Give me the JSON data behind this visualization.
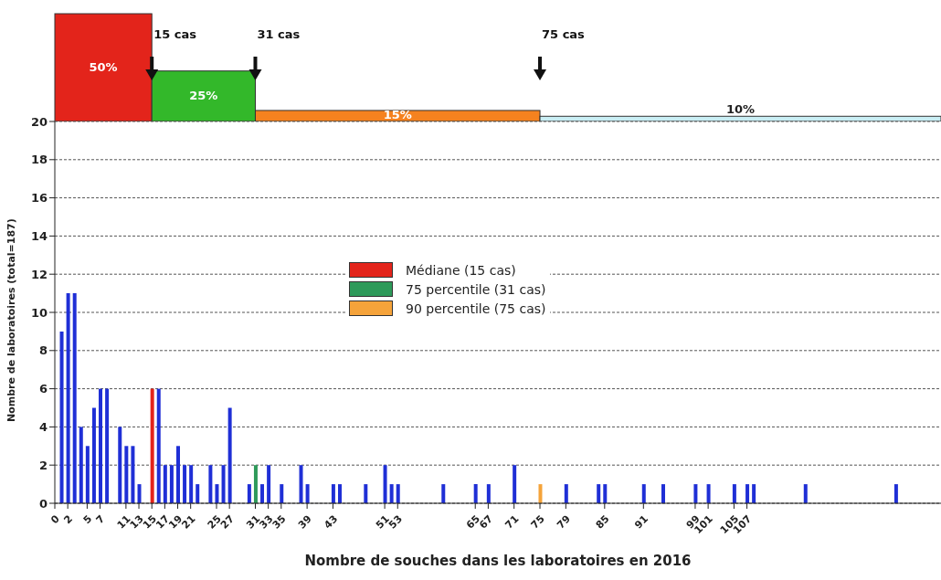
{
  "chart_data": [
    {
      "type": "other",
      "values": [
        50,
        25,
        15,
        10
      ],
      "colors": [
        "#e3241b",
        "#33b82a",
        "#f5821f",
        "#c9eef4"
      ],
      "value_labels": [
        "50%",
        "25%",
        "15%",
        "10%"
      ],
      "annotations": [
        "15 cas",
        "31 cas",
        "75 cas"
      ]
    },
    {
      "type": "bar",
      "xlabel": "Nombre de souches dans les laboratoires en 2016",
      "ylabel": "Nombre de laboratoires (total=187)",
      "xlim": [
        0,
        137
      ],
      "xticks": [
        0,
        2,
        5,
        7,
        11,
        13,
        15,
        17,
        19,
        21,
        25,
        27,
        31,
        33,
        35,
        39,
        43,
        51,
        53,
        65,
        67,
        71,
        75,
        79,
        85,
        91,
        99,
        101,
        105,
        107
      ],
      "ylim": [
        0,
        20
      ],
      "yticks": [
        0,
        2,
        4,
        6,
        8,
        10,
        12,
        14,
        16,
        18,
        20
      ],
      "grid": "y",
      "legend": "center",
      "series": [
        {
          "color": "#1f2fd6",
          "x": [
            1,
            2,
            3,
            4,
            5,
            6,
            7,
            8,
            10,
            11,
            12,
            13,
            16,
            17,
            18,
            19,
            20,
            21,
            22,
            24,
            25,
            26,
            27,
            30,
            32,
            33,
            35,
            38,
            39,
            43,
            44,
            48,
            51,
            52,
            53,
            60,
            65,
            67,
            71,
            79,
            84,
            85,
            91,
            94,
            99,
            101,
            105,
            107,
            108,
            116,
            130
          ],
          "values": [
            9,
            11,
            11,
            4,
            3,
            5,
            6,
            6,
            4,
            3,
            3,
            1,
            6,
            2,
            2,
            3,
            2,
            2,
            1,
            2,
            1,
            2,
            5,
            1,
            1,
            2,
            1,
            2,
            1,
            1,
            1,
            1,
            2,
            1,
            1,
            1,
            1,
            1,
            2,
            1,
            1,
            1,
            1,
            1,
            1,
            1,
            1,
            1,
            1,
            1,
            1
          ]
        },
        {
          "name": "Médiane (15 cas)",
          "color": "#e3241b",
          "x": [
            15
          ],
          "values": [
            6
          ]
        },
        {
          "name": "75 percentile (31 cas)",
          "color": "#2e9a5a",
          "x": [
            31
          ],
          "values": [
            2
          ]
        },
        {
          "name": "90 percentile (75 cas)",
          "color": "#f5a33a",
          "x": [
            75
          ],
          "values": [
            1
          ]
        }
      ]
    }
  ]
}
